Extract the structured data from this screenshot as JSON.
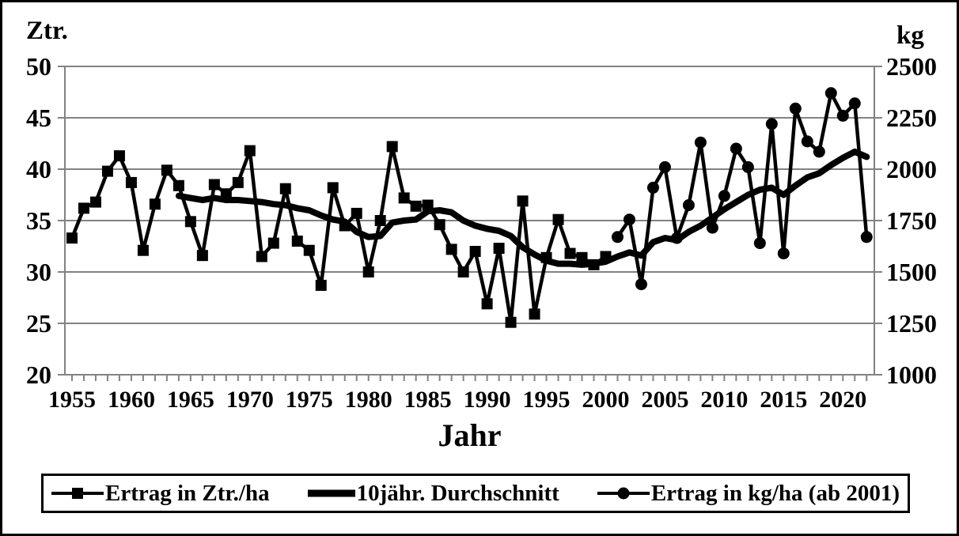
{
  "figure": {
    "left_axis_unit": "Ztr.",
    "right_axis_unit": "kg",
    "x_axis_title": "Jahr"
  },
  "legend": {
    "series1_label": "Ertrag in Ztr./ha",
    "series2_label": "10jähr. Durchschnitt",
    "series3_label": "Ertrag in kg/ha (ab 2001)"
  },
  "chart_data": {
    "type": "line",
    "title": "",
    "xlabel": "Jahr",
    "grid": "horizontal",
    "legend_position": "bottom",
    "colors": {
      "series": "#000000",
      "grid": "#828282",
      "background": "#ffffff"
    },
    "x_axis": {
      "range_years": [
        1954.4,
        2022.65
      ],
      "minor_tick_years": [
        1955,
        2022
      ],
      "tick_labels": [
        "1955",
        "1960",
        "1965",
        "1970",
        "1975",
        "1980",
        "1985",
        "1990",
        "1995",
        "2000",
        "2005",
        "2010",
        "2015",
        "2020"
      ],
      "tick_label_years": [
        1955,
        1960,
        1965,
        1970,
        1975,
        1980,
        1985,
        1990,
        1995,
        2000,
        2005,
        2010,
        2015,
        2020
      ]
    },
    "y_axis_left": {
      "unit": "Ztr.",
      "range": [
        20,
        50
      ],
      "ticks": [
        20,
        25,
        30,
        35,
        40,
        45,
        50
      ],
      "tick_labels": [
        "20",
        "25",
        "30",
        "35",
        "40",
        "45",
        "50"
      ]
    },
    "y_axis_right": {
      "unit": "kg",
      "range": [
        1000,
        2500
      ],
      "ticks": [
        1000,
        1250,
        1500,
        1750,
        2000,
        2250,
        2500
      ],
      "tick_labels": [
        "1000",
        "1250",
        "1500",
        "1750",
        "2000",
        "2250",
        "2500"
      ]
    },
    "series": [
      {
        "name": "Ertrag in Ztr./ha",
        "axis": "left",
        "marker": "square",
        "thick": false,
        "start_year": 1955,
        "annual_step": 1,
        "values": [
          33.3,
          36.2,
          36.8,
          39.8,
          41.3,
          38.7,
          32.1,
          36.6,
          39.9,
          38.4,
          34.9,
          31.6,
          38.5,
          37.6,
          38.7,
          41.8,
          31.5,
          32.8,
          38.1,
          33.0,
          32.1,
          28.7,
          38.2,
          34.5,
          35.7,
          30.0,
          35.0,
          42.2,
          37.2,
          36.4,
          36.5,
          34.6,
          32.2,
          30.0,
          32.0,
          26.9,
          32.3,
          25.1,
          36.9,
          25.9,
          31.4,
          35.1,
          31.8,
          31.4,
          30.7,
          31.5
        ]
      },
      {
        "name": "10jähr. Durchschnitt",
        "axis": "left",
        "marker": "none",
        "thick": true,
        "start_year": 1964,
        "annual_step": 1,
        "values": [
          37.4,
          37.2,
          37.0,
          37.2,
          37.0,
          37.0,
          36.9,
          36.8,
          36.6,
          36.5,
          36.2,
          36.0,
          35.5,
          35.1,
          34.9,
          33.9,
          33.4,
          33.5,
          34.8,
          35.0,
          35.1,
          35.9,
          36.0,
          35.8,
          35.0,
          34.5,
          34.2,
          34.0,
          33.5,
          32.4,
          31.7,
          31.1,
          30.8,
          30.8,
          30.7,
          30.8,
          31.0,
          31.5,
          31.9,
          31.6,
          32.9,
          33.3,
          33.1,
          33.9,
          34.5,
          35.3,
          36.1,
          36.8,
          37.5,
          38.0,
          38.2,
          37.5,
          38.4,
          39.2,
          39.6,
          40.4,
          41.1,
          41.7,
          41.2
        ]
      },
      {
        "name": "Ertrag in kg/ha (ab 2001)",
        "axis": "right",
        "marker": "circle",
        "thick": false,
        "start_year": 2001,
        "annual_step": 1,
        "values": [
          1670,
          1755,
          1440,
          1910,
          2010,
          1665,
          1825,
          2130,
          1715,
          1870,
          2100,
          2010,
          1640,
          2220,
          1590,
          2295,
          2135,
          2085,
          2370,
          2260,
          2320,
          1670
        ]
      }
    ]
  }
}
